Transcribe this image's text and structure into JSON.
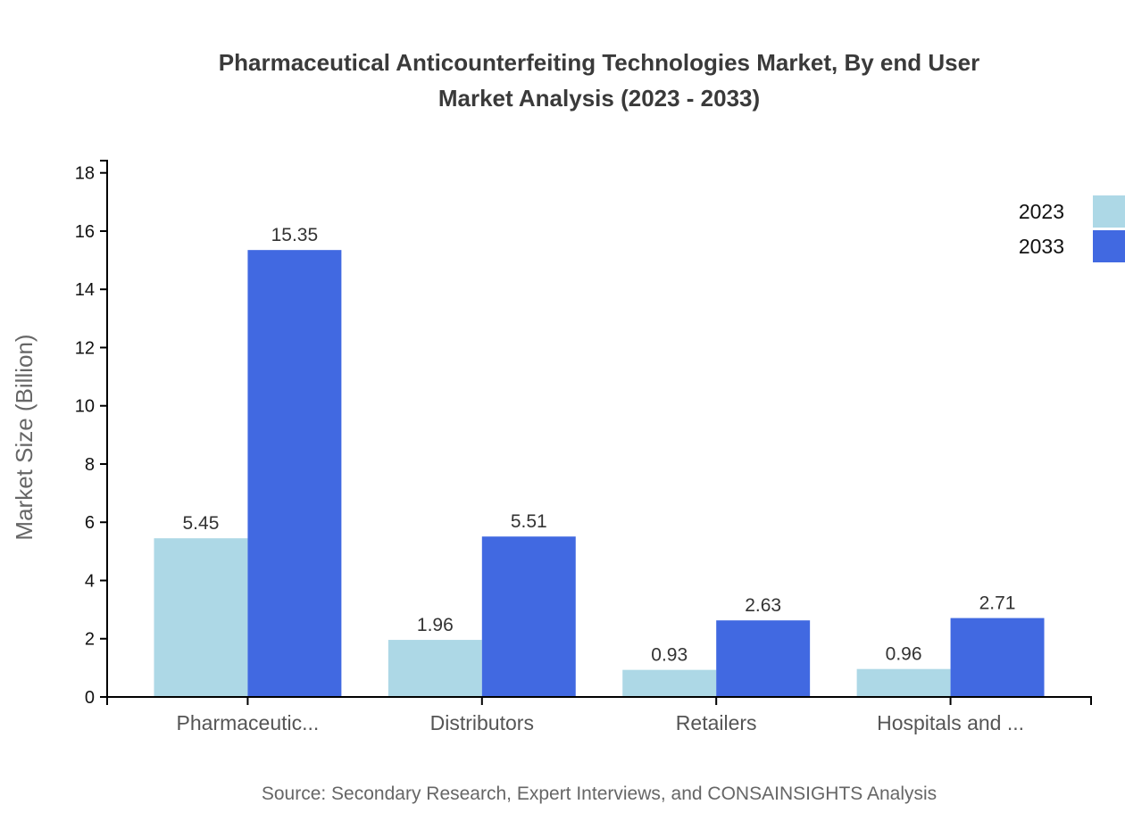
{
  "header": {
    "title": "Pharmaceutical Anticounterfeiting Technologies Market, By end User Market Analysis (2023 - 2033)",
    "title_lines": [
      "Pharmaceutical Anticounterfeiting Technologies Market, By end User",
      "Market Analysis (2023 - 2033)"
    ]
  },
  "footer": {
    "source": "Source: Secondary Research, Expert Interviews, and CONSAINSIGHTS Analysis"
  },
  "chart_data": {
    "type": "bar",
    "title": "Pharmaceutical Anticounterfeiting Technologies Market, By end User Market Analysis (2023 - 2033)",
    "categories": [
      "Pharmaceutic...",
      "Distributors",
      "Retailers",
      "Hospitals and ..."
    ],
    "series": [
      {
        "name": "2023",
        "color": "#ADD8E6",
        "values": [
          5.45,
          1.96,
          0.93,
          0.96
        ]
      },
      {
        "name": "2033",
        "color": "#4169E1",
        "values": [
          15.35,
          5.51,
          2.63,
          2.71
        ]
      }
    ],
    "xlabel": "",
    "ylabel": "Market Size (Billion)",
    "ylim": [
      0,
      18.42
    ],
    "yticks": [
      0,
      2,
      4,
      6,
      8,
      10,
      12,
      14,
      16,
      18
    ],
    "data_labels": true,
    "grid": false,
    "legend_position": "top-right",
    "axis_color": "#000000",
    "tick_label_color": "#111111",
    "category_label_color": "#555555",
    "value_label_color": "#333333",
    "ylabel_color": "#666666"
  }
}
